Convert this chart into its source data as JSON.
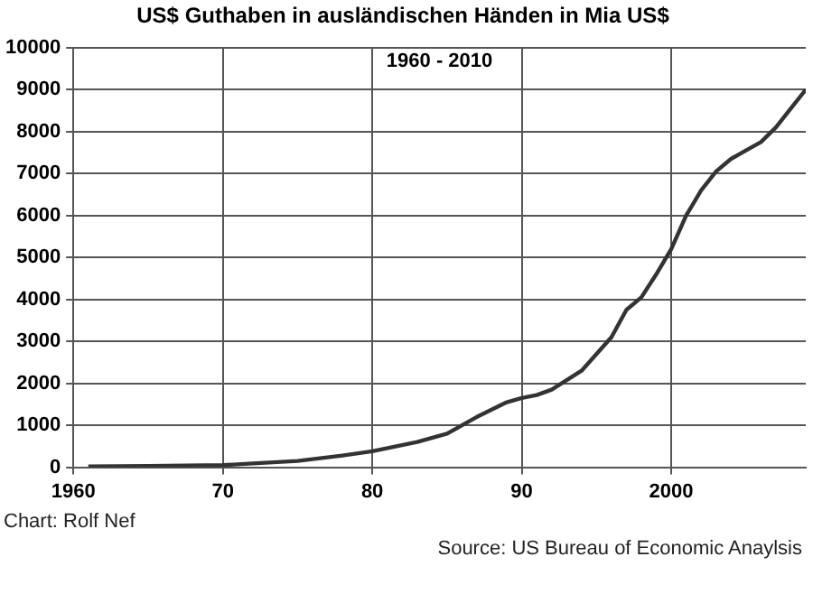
{
  "chart_data": {
    "type": "line",
    "title": "US$ Guthaben in ausländischen Händen in Mia US$",
    "subtitle": "1960 - 2010",
    "annotations": [
      "Chart: Rolf Nef",
      "Source: US Bureau of Economic Anaylsis"
    ],
    "x": [
      1961,
      1965,
      1970,
      1972,
      1975,
      1978,
      1980,
      1983,
      1985,
      1987,
      1989,
      1990,
      1991,
      1992,
      1994,
      1996,
      1997,
      1998,
      1999,
      2000,
      2001,
      2002,
      2003,
      2004,
      2005,
      2006,
      2007,
      2008,
      2009
    ],
    "series": [
      {
        "color": "#333333",
        "values": [
          20,
          30,
          50,
          90,
          150,
          280,
          380,
          600,
          800,
          1200,
          1550,
          1650,
          1720,
          1850,
          2300,
          3100,
          3750,
          4050,
          4600,
          5200,
          6000,
          6600,
          7050,
          7350,
          7550,
          7750,
          8100,
          8550,
          9000
        ]
      }
    ],
    "xlim": [
      1960,
      2009
    ],
    "xticks": [
      1960,
      {
        "value": 1970,
        "label": "70"
      },
      {
        "value": 1980,
        "label": "80"
      },
      {
        "value": 1990,
        "label": "90"
      },
      2000
    ],
    "ylim": [
      0,
      10000
    ],
    "yticks": [
      0,
      1000,
      2000,
      3000,
      4000,
      5000,
      6000,
      7000,
      8000,
      9000,
      10000
    ],
    "grid": true,
    "legend": false,
    "marker": "none",
    "line_style": "solid"
  }
}
